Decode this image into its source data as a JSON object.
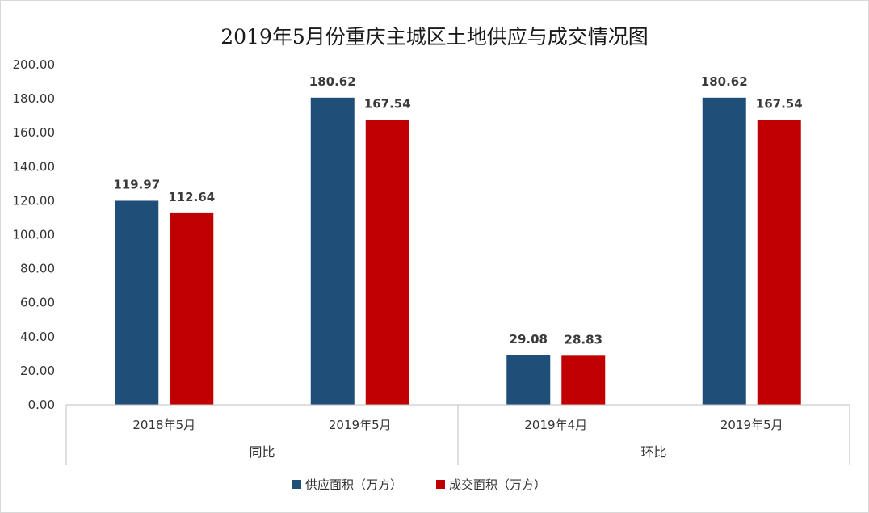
{
  "chart_data": {
    "type": "bar",
    "title": "2019年5月份重庆主城区土地供应与成交情况图",
    "groups": [
      {
        "label": "同比",
        "categories": [
          "2018年5月",
          "2019年5月"
        ]
      },
      {
        "label": "环比",
        "categories": [
          "2019年4月",
          "2019年5月"
        ]
      }
    ],
    "categories": [
      "2018年5月",
      "2019年5月",
      "2019年4月",
      "2019年5月"
    ],
    "series": [
      {
        "name": "供应面积（万方）",
        "color": "#1f4e79",
        "values": [
          119.97,
          180.62,
          29.08,
          180.62
        ],
        "labels": [
          "119.97",
          "180.62",
          "29.08",
          "180.62"
        ]
      },
      {
        "name": "成交面积（万方）",
        "color": "#c00000",
        "values": [
          112.64,
          167.54,
          28.83,
          167.54
        ],
        "labels": [
          "112.64",
          "167.54",
          "28.83",
          "167.54"
        ]
      }
    ],
    "ylim": [
      0,
      200
    ],
    "yticks": [
      "0.00",
      "20.00",
      "40.00",
      "60.00",
      "80.00",
      "100.00",
      "120.00",
      "140.00",
      "160.00",
      "180.00",
      "200.00"
    ],
    "grid": false,
    "legend_position": "bottom"
  }
}
